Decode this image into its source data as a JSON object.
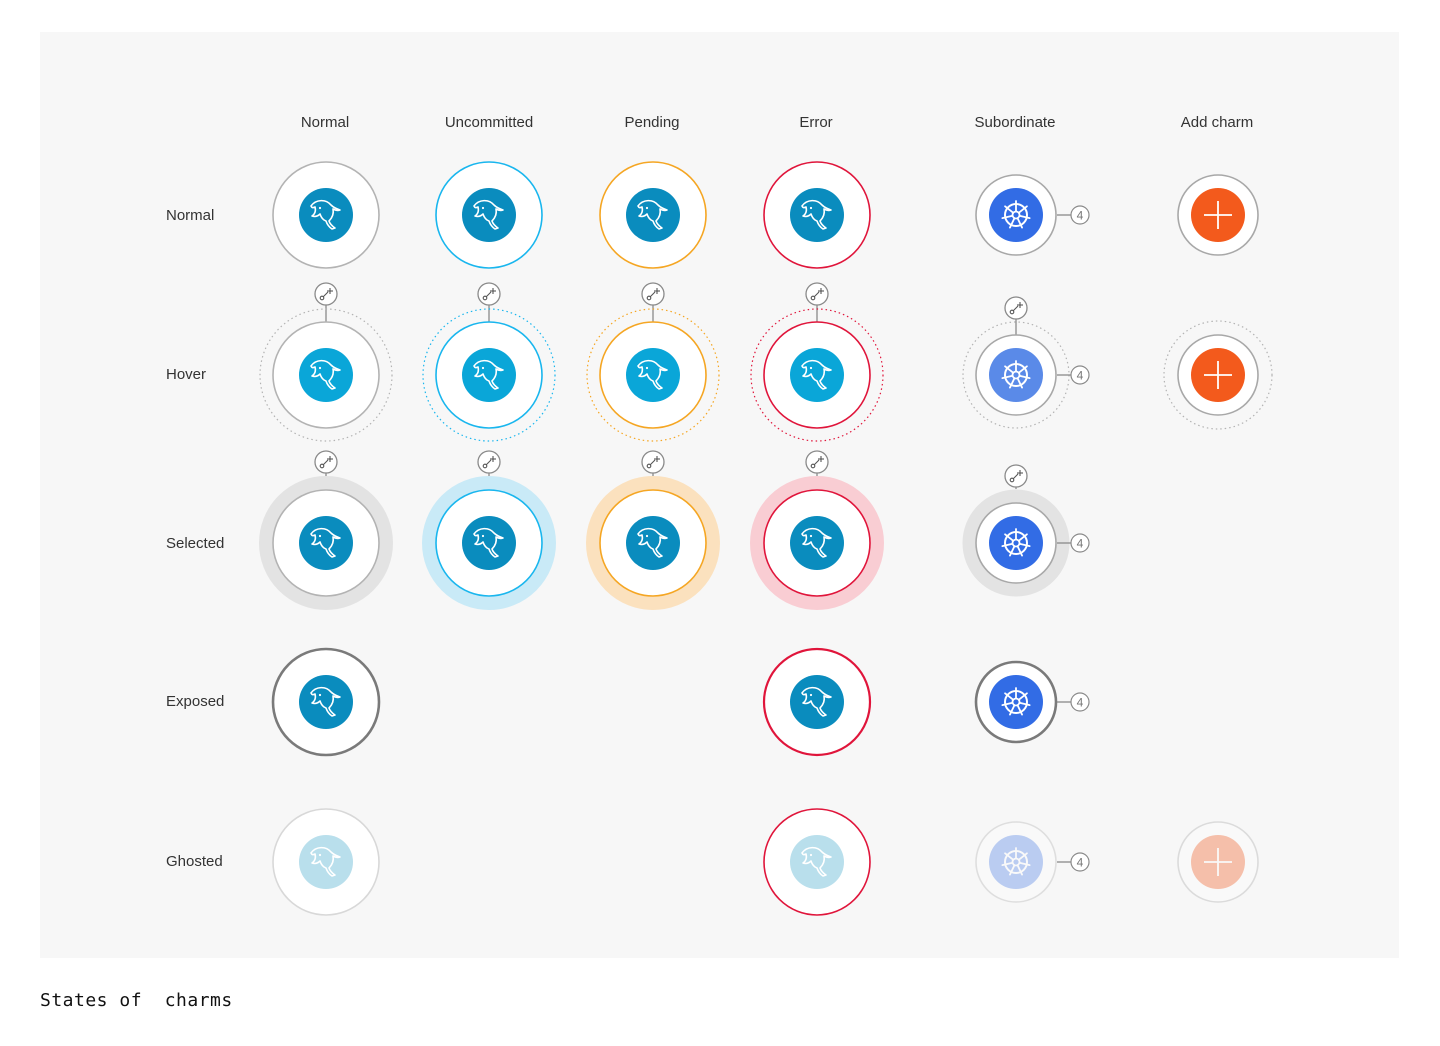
{
  "columns": [
    {
      "label": "Normal",
      "key": "normal"
    },
    {
      "label": "Uncommitted",
      "key": "uncommitted"
    },
    {
      "label": "Pending",
      "key": "pending"
    },
    {
      "label": "Error",
      "key": "error"
    },
    {
      "label": "Subordinate",
      "key": "subordinate"
    },
    {
      "label": "Add charm",
      "key": "add"
    }
  ],
  "rows": [
    {
      "label": "Normal",
      "key": "normal"
    },
    {
      "label": "Hover",
      "key": "hover"
    },
    {
      "label": "Selected",
      "key": "selected"
    },
    {
      "label": "Exposed",
      "key": "exposed"
    },
    {
      "label": "Ghosted",
      "key": "ghosted"
    }
  ],
  "colors": {
    "normal_ring": "#b3b3b3",
    "uncommitted_ring": "#19b6ee",
    "pending_ring": "#f5a623",
    "error_ring": "#e0153b",
    "exposed_ring": "#7a7a7a",
    "mysql_icon": "#0a8cbe",
    "mysql_icon_hover": "#0aa6d8",
    "kubernetes_icon": "#326ce5",
    "add_icon": "#f35a1c",
    "selected_normal_halo": "#e3e3e3",
    "selected_uncommitted_halo": "#c9eaf7",
    "selected_pending_halo": "#fbe1be",
    "selected_error_halo": "#f9cdd3"
  },
  "icons": {
    "mysql": "mysql-dolphin-icon",
    "subordinate": "kubernetes-helm-icon",
    "add": "plus-icon",
    "relation": "relation-add-icon"
  },
  "unit_count": "4",
  "caption": "States of  charms"
}
